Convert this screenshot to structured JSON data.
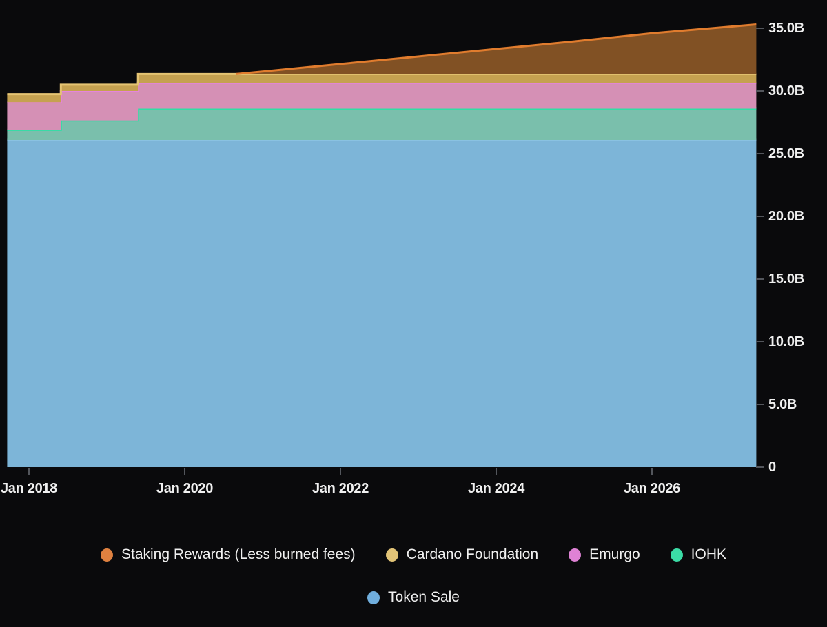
{
  "background": "#0a0a0c",
  "chart_data": {
    "type": "area",
    "stacked": true,
    "title": "",
    "xlabel": "",
    "ylabel": "",
    "grid": false,
    "legend_position": "bottom",
    "x_axis": {
      "tick_labels": [
        "Jan 2018",
        "Jan 2020",
        "Jan 2022",
        "Jan 2024",
        "Jan 2026"
      ],
      "tick_years": [
        2018,
        2020,
        2022,
        2024,
        2026
      ],
      "range": [
        2017.63,
        2027.36
      ]
    },
    "y_axis": {
      "side": "right",
      "tick_labels": [
        "0",
        "5.0B",
        "10.0B",
        "15.0B",
        "20.0B",
        "25.0B",
        "30.0B",
        "35.0B"
      ],
      "tick_values": [
        0,
        5,
        10,
        15,
        20,
        25,
        30,
        35
      ],
      "range": [
        0,
        35.9
      ],
      "unit": "billions of tokens"
    },
    "series": [
      {
        "name": "Token Sale",
        "line_color": "#8ac2e2",
        "fill_color": "#7db5d8",
        "note": "cumulative top, billions; flat",
        "points": [
          [
            2017.72,
            26.1
          ],
          [
            2027.34,
            26.1
          ]
        ]
      },
      {
        "name": "IOHK",
        "line_color": "#2fdfa5",
        "fill_color": "#7abfac",
        "note": "cumulative top, billions; vesting steps mid-2018 and mid-2019",
        "points": [
          [
            2017.72,
            26.9
          ],
          [
            2018.41,
            26.9
          ],
          [
            2018.41,
            27.65
          ],
          [
            2019.4,
            27.65
          ],
          [
            2019.4,
            28.6
          ],
          [
            2027.34,
            28.6
          ]
        ]
      },
      {
        "name": "Emurgo",
        "line_color": "#e584dd",
        "fill_color": "#d590b5",
        "note": "cumulative top, billions",
        "points": [
          [
            2017.72,
            29.1
          ],
          [
            2018.41,
            29.1
          ],
          [
            2018.41,
            30.0
          ],
          [
            2019.4,
            30.0
          ],
          [
            2019.4,
            30.65
          ],
          [
            2027.34,
            30.65
          ]
        ]
      },
      {
        "name": "Cardano Foundation",
        "line_color": "#e5c473",
        "fill_color": "#c5a150",
        "note": "cumulative top, billions",
        "points": [
          [
            2017.72,
            29.75
          ],
          [
            2018.41,
            29.75
          ],
          [
            2018.41,
            30.5
          ],
          [
            2019.4,
            30.5
          ],
          [
            2019.4,
            31.35
          ],
          [
            2027.34,
            31.35
          ]
        ]
      },
      {
        "name": "Staking Rewards (Less burned fees)",
        "line_color": "#e07c2e",
        "fill_color": "#815124",
        "note": "cumulative top, billions; rewards begin ~Aug 2020, near-linear growth",
        "points": [
          [
            2020.66,
            31.35
          ],
          [
            2022.0,
            32.15
          ],
          [
            2023.0,
            32.75
          ],
          [
            2024.0,
            33.35
          ],
          [
            2025.0,
            33.95
          ],
          [
            2026.0,
            34.6
          ],
          [
            2027.34,
            35.3
          ]
        ]
      }
    ]
  },
  "axis_style": {
    "tick_color": "#53565c",
    "label_color": "#f0f0f0"
  },
  "legend": {
    "row1": [
      {
        "label": "Staking Rewards (Less burned fees)",
        "color": "#df8140"
      },
      {
        "label": "Cardano Foundation",
        "color": "#e2c477"
      },
      {
        "label": "Emurgo",
        "color": "#df82d5"
      },
      {
        "label": "IOHK",
        "color": "#3bdca6"
      }
    ],
    "row2": [
      {
        "label": "Token Sale",
        "color": "#70aedd"
      }
    ]
  }
}
